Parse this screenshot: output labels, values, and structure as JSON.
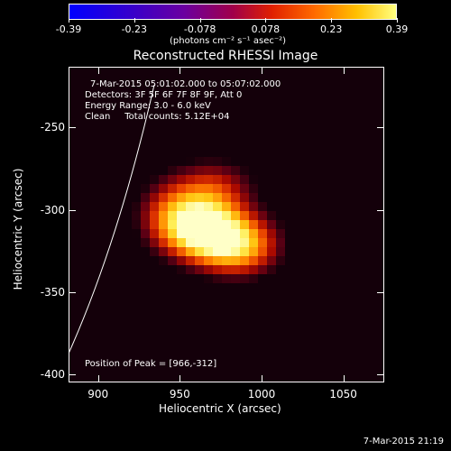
{
  "colorbar": {
    "ticks": [
      "-0.39",
      "-0.23",
      "-0.078",
      "0.078",
      "0.23",
      "0.39"
    ],
    "units": "(photons cm⁻² s⁻¹ asec⁻²)"
  },
  "title": "Reconstructed RHESSI Image",
  "info": {
    "line1": "7-Mar-2015 05:01:02.000 to 05:07:02.000",
    "line2": "Detectors: 3F 5F 6F 7F 8F 9F, Att 0",
    "line3": "Energy Range: 3.0 - 6.0 keV",
    "line4": "Clean     Total counts: 5.12E+04"
  },
  "peak_text": "Position of Peak = [966,-312]",
  "axes": {
    "xlabel": "Heliocentric X (arcsec)",
    "ylabel": "Heliocentric Y (arcsec)",
    "xticks": [
      "900",
      "950",
      "1000",
      "1050"
    ],
    "yticks": [
      "-250",
      "-300",
      "-350",
      "-400"
    ]
  },
  "footer": "7-Mar-2015 21:19",
  "chart_data": {
    "type": "heatmap",
    "title": "Reconstructed RHESSI Image",
    "xlabel": "Heliocentric X (arcsec)",
    "ylabel": "Heliocentric Y (arcsec)",
    "xlim": [
      882,
      1075
    ],
    "ylim": [
      -405,
      -213
    ],
    "colorbar_range": [
      -0.39,
      0.39
    ],
    "peak": [
      966,
      -312
    ],
    "sources": [
      {
        "x": 966,
        "y": -312,
        "amp": 1.0,
        "sx": 16,
        "sy": 14
      },
      {
        "x": 988,
        "y": -322,
        "amp": 0.9,
        "sx": 18,
        "sy": 14
      },
      {
        "x": 945,
        "y": -305,
        "amp": 0.65,
        "sx": 16,
        "sy": 16
      },
      {
        "x": 972,
        "y": -285,
        "amp": 0.45,
        "sx": 18,
        "sy": 12
      }
    ]
  }
}
